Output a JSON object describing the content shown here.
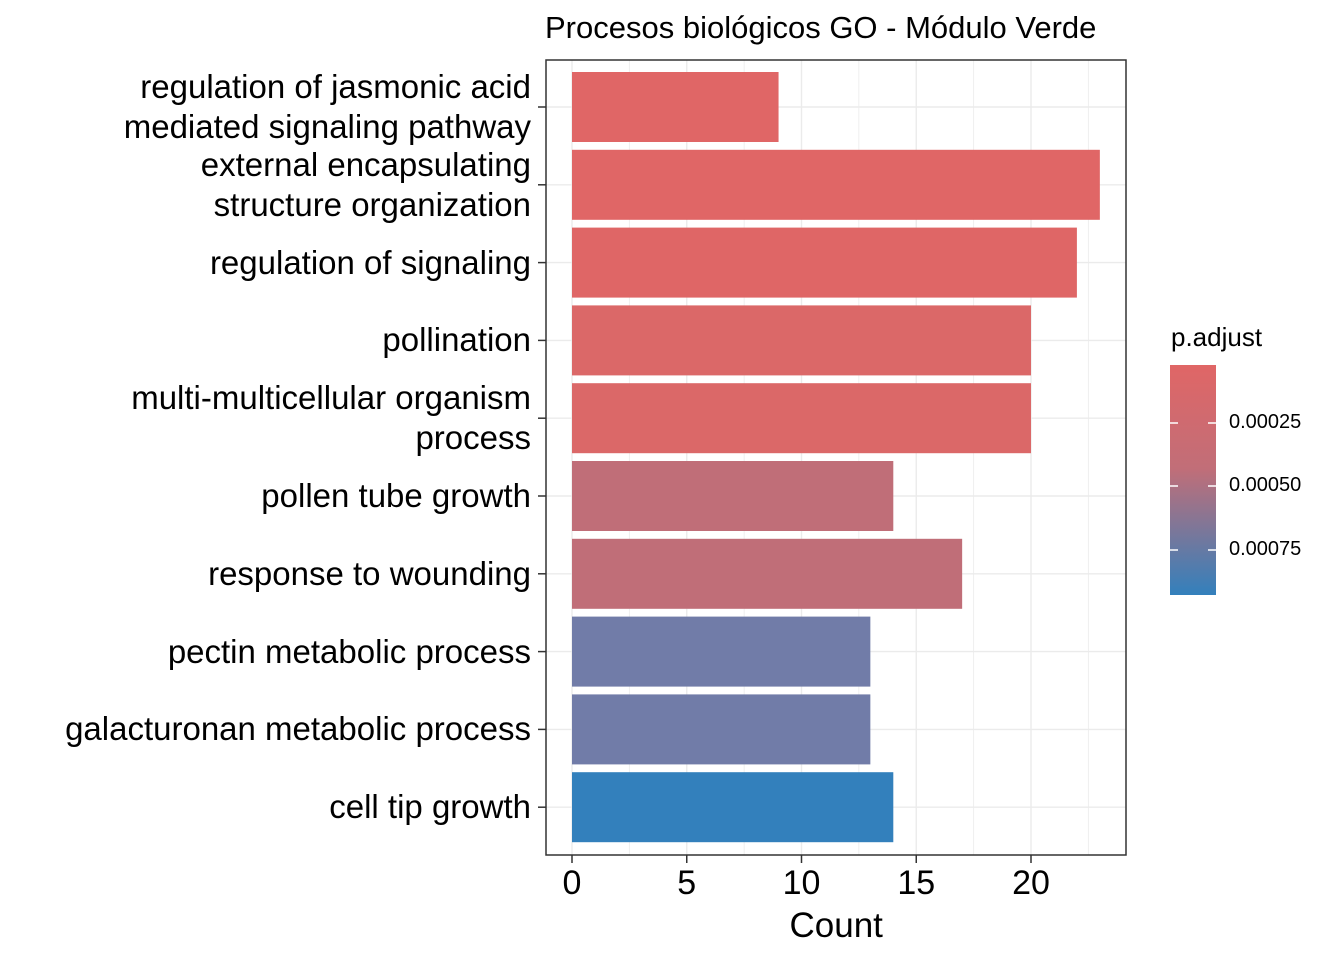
{
  "chart_data": {
    "type": "bar",
    "orientation": "horizontal",
    "title": "Procesos biológicos GO - Módulo Verde",
    "xlabel": "Count",
    "xlim": [
      0,
      24
    ],
    "xticks": [
      0,
      5,
      10,
      15,
      20
    ],
    "grid": true,
    "legend": {
      "title": "p.adjust",
      "placement": "right",
      "type": "colorbar",
      "ticks": [
        "0.00025",
        "0.00050",
        "0.00075"
      ],
      "low_color": "#E06666",
      "high_color": "#3380BC"
    },
    "categories": [
      "regulation of jasmonic acid\nmediated signaling pathway",
      "external encapsulating\nstructure organization",
      "regulation of signaling",
      "pollination",
      "multi-multicellular organism\nprocess",
      "pollen tube growth",
      "response to wounding",
      "pectin metabolic process",
      "galacturonan metabolic process",
      "cell tip growth"
    ],
    "values": [
      9,
      23,
      22,
      20,
      20,
      14,
      17,
      13,
      13,
      14
    ],
    "colors": [
      "#E06666",
      "#E06666",
      "#DF6666",
      "#DB6868",
      "#DB6868",
      "#C06E78",
      "#C06E78",
      "#717CA8",
      "#717CA8",
      "#3380BC"
    ]
  }
}
